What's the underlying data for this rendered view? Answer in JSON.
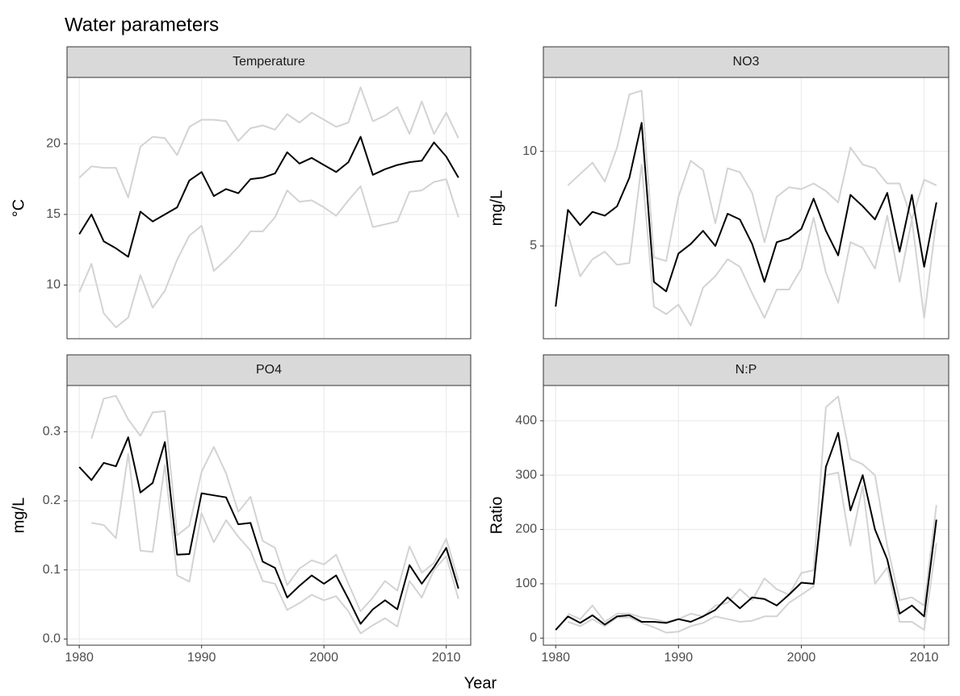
{
  "title": "Water parameters",
  "x_label": "Year",
  "chart_data": [
    {
      "type": "line",
      "title": "Temperature",
      "y_label": "°C",
      "x": [
        1980,
        1981,
        1982,
        1983,
        1984,
        1985,
        1986,
        1987,
        1988,
        1989,
        1990,
        1991,
        1992,
        1993,
        1994,
        1995,
        1996,
        1997,
        1998,
        1999,
        2000,
        2001,
        2002,
        2003,
        2004,
        2005,
        2006,
        2007,
        2008,
        2009,
        2010,
        2011
      ],
      "xlim": [
        1979,
        2012
      ],
      "xticks": [
        1980,
        1990,
        2000,
        2010
      ],
      "ylim": [
        6.2,
        24.7
      ],
      "yticks": [
        10,
        15,
        20
      ],
      "grid": true,
      "series": [
        {
          "color": "#d3d3d3",
          "values": [
            17.6,
            18.4,
            18.3,
            18.3,
            16.2,
            19.8,
            20.5,
            20.4,
            19.2,
            21.2,
            21.7,
            21.7,
            21.6,
            20.2,
            21.1,
            21.3,
            21.0,
            22.1,
            21.5,
            22.2,
            21.7,
            21.2,
            21.5,
            24.0,
            21.6,
            22.0,
            22.6,
            20.7,
            23.0,
            20.7,
            22.2,
            20.4
          ]
        },
        {
          "color": "#d3d3d3",
          "values": [
            9.5,
            11.5,
            8.0,
            7.0,
            7.7,
            10.7,
            8.4,
            9.6,
            11.8,
            13.5,
            14.2,
            11.0,
            11.8,
            12.7,
            13.8,
            13.8,
            14.8,
            16.7,
            15.9,
            16.0,
            15.5,
            14.9,
            16.0,
            17.0,
            14.1,
            14.3,
            14.5,
            16.6,
            16.7,
            17.3,
            17.5,
            14.8
          ]
        },
        {
          "color": "#000000",
          "values": [
            13.6,
            15.0,
            13.1,
            12.6,
            12.0,
            15.2,
            14.5,
            15.0,
            15.5,
            17.4,
            18.0,
            16.3,
            16.8,
            16.5,
            17.5,
            17.6,
            17.9,
            19.4,
            18.6,
            19.0,
            18.5,
            18.0,
            18.7,
            20.5,
            17.8,
            18.2,
            18.5,
            18.7,
            18.8,
            20.1,
            19.1,
            17.6
          ]
        }
      ]
    },
    {
      "type": "line",
      "title": "NO3",
      "y_label": "mg/L",
      "x": [
        1980,
        1981,
        1982,
        1983,
        1984,
        1985,
        1986,
        1987,
        1988,
        1989,
        1990,
        1991,
        1992,
        1993,
        1994,
        1995,
        1996,
        1997,
        1998,
        1999,
        2000,
        2001,
        2002,
        2003,
        2004,
        2005,
        2006,
        2007,
        2008,
        2009,
        2010,
        2011
      ],
      "xlim": [
        1979,
        2012
      ],
      "xticks": [
        1980,
        1990,
        2000,
        2010
      ],
      "ylim": [
        0.1,
        13.9
      ],
      "yticks": [
        5,
        10
      ],
      "grid": true,
      "series": [
        {
          "color": "#d3d3d3",
          "values": [
            null,
            8.2,
            8.8,
            9.4,
            8.4,
            10.2,
            13.0,
            13.2,
            4.4,
            4.2,
            7.6,
            9.5,
            9.0,
            6.2,
            9.1,
            8.9,
            7.8,
            5.2,
            7.6,
            8.1,
            8.0,
            8.3,
            7.9,
            7.3,
            10.2,
            9.3,
            9.1,
            8.3,
            8.3,
            6.4,
            8.5,
            8.2
          ]
        },
        {
          "color": "#d3d3d3",
          "values": [
            null,
            5.6,
            3.4,
            4.3,
            4.7,
            4.0,
            4.1,
            9.3,
            1.8,
            1.4,
            1.9,
            0.8,
            2.8,
            3.4,
            4.3,
            3.9,
            2.5,
            1.2,
            2.7,
            2.7,
            3.8,
            6.5,
            3.6,
            2.0,
            5.2,
            4.9,
            3.8,
            6.6,
            3.1,
            6.4,
            1.2,
            6.4
          ]
        },
        {
          "color": "#000000",
          "values": [
            1.8,
            6.9,
            6.1,
            6.8,
            6.6,
            7.1,
            8.6,
            11.5,
            3.1,
            2.6,
            4.6,
            5.1,
            5.8,
            5.0,
            6.7,
            6.4,
            5.1,
            3.1,
            5.2,
            5.4,
            5.9,
            7.5,
            5.8,
            4.5,
            7.7,
            7.1,
            6.4,
            7.8,
            4.7,
            7.7,
            3.9,
            7.3
          ]
        }
      ]
    },
    {
      "type": "line",
      "title": "PO4",
      "y_label": "mg/L",
      "x": [
        1980,
        1981,
        1982,
        1983,
        1984,
        1985,
        1986,
        1987,
        1988,
        1989,
        1990,
        1991,
        1992,
        1993,
        1994,
        1995,
        1996,
        1997,
        1998,
        1999,
        2000,
        2001,
        2002,
        2003,
        2004,
        2005,
        2006,
        2007,
        2008,
        2009,
        2010,
        2011
      ],
      "xlim": [
        1979,
        2012
      ],
      "xticks": [
        1980,
        1990,
        2000,
        2010
      ],
      "ylim": [
        -0.009,
        0.367
      ],
      "yticks": [
        {
          "value": 0,
          "label": "0.0"
        },
        0.1,
        0.2,
        0.3
      ],
      "grid": true,
      "series": [
        {
          "color": "#d3d3d3",
          "values": [
            null,
            0.29,
            0.348,
            0.352,
            0.318,
            0.294,
            0.328,
            0.33,
            0.15,
            0.164,
            0.242,
            0.278,
            0.24,
            0.184,
            0.206,
            0.142,
            0.132,
            0.078,
            0.102,
            0.114,
            0.108,
            0.122,
            0.08,
            0.04,
            0.06,
            0.084,
            0.07,
            0.134,
            0.096,
            0.11,
            0.145,
            0.084
          ]
        },
        {
          "color": "#d3d3d3",
          "values": [
            null,
            0.168,
            0.165,
            0.146,
            0.268,
            0.128,
            0.126,
            0.252,
            0.092,
            0.083,
            0.182,
            0.14,
            0.172,
            0.148,
            0.128,
            0.084,
            0.08,
            0.042,
            0.052,
            0.064,
            0.056,
            0.062,
            0.04,
            0.008,
            0.02,
            0.03,
            0.018,
            0.084,
            0.06,
            0.1,
            0.12,
            0.058
          ]
        },
        {
          "color": "#000000",
          "values": [
            0.249,
            0.23,
            0.255,
            0.25,
            0.292,
            0.212,
            0.226,
            0.285,
            0.122,
            0.123,
            0.211,
            0.208,
            0.205,
            0.166,
            0.168,
            0.112,
            0.103,
            0.06,
            0.077,
            0.092,
            0.08,
            0.092,
            0.058,
            0.022,
            0.043,
            0.056,
            0.043,
            0.107,
            0.08,
            0.104,
            0.132,
            0.073
          ]
        }
      ]
    },
    {
      "type": "line",
      "title": "N:P",
      "y_label": "Ratio",
      "x": [
        1980,
        1981,
        1982,
        1983,
        1984,
        1985,
        1986,
        1987,
        1988,
        1989,
        1990,
        1991,
        1992,
        1993,
        1994,
        1995,
        1996,
        1997,
        1998,
        1999,
        2000,
        2001,
        2002,
        2003,
        2004,
        2005,
        2006,
        2007,
        2008,
        2009,
        2010,
        2011
      ],
      "xlim": [
        1979,
        2012
      ],
      "xticks": [
        1980,
        1990,
        2000,
        2010
      ],
      "ylim": [
        -13,
        465
      ],
      "yticks": [
        0,
        100,
        200,
        300,
        400
      ],
      "grid": true,
      "series": [
        {
          "color": "#d3d3d3",
          "values": [
            null,
            45,
            35,
            60,
            30,
            45,
            45,
            38,
            35,
            30,
            35,
            45,
            40,
            60,
            65,
            90,
            70,
            110,
            90,
            80,
            120,
            125,
            425,
            445,
            330,
            320,
            300,
            170,
            70,
            75,
            60,
            245
          ]
        },
        {
          "color": "#d3d3d3",
          "values": [
            null,
            30,
            22,
            35,
            22,
            38,
            38,
            28,
            20,
            10,
            12,
            22,
            28,
            40,
            35,
            30,
            32,
            40,
            40,
            65,
            80,
            95,
            300,
            305,
            170,
            280,
            100,
            130,
            30,
            30,
            15,
            175
          ]
        },
        {
          "color": "#000000",
          "values": [
            15,
            40,
            28,
            42,
            25,
            40,
            42,
            30,
            30,
            28,
            35,
            30,
            40,
            52,
            75,
            55,
            75,
            72,
            60,
            80,
            102,
            100,
            315,
            378,
            235,
            300,
            200,
            145,
            45,
            60,
            40,
            218
          ]
        }
      ]
    }
  ]
}
